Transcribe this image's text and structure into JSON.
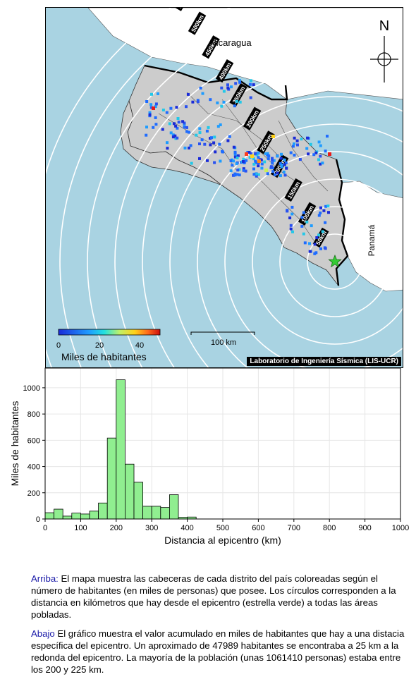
{
  "map": {
    "country_labels": {
      "north": "Nicaragua",
      "east": "Panamá"
    },
    "north_label": "N",
    "scale_label": "100 km",
    "colorbar": {
      "title": "Miles de habitantes",
      "ticks": [
        "0",
        "20",
        "40"
      ]
    },
    "ring_labels": [
      "50km",
      "100km",
      "150km",
      "200km",
      "250km",
      "300km",
      "350km",
      "400km",
      "450km",
      "500km",
      "550km"
    ],
    "credit": "Laboratorio de Ingeniería Sísmica (LIS-UCR)",
    "colors": {
      "sea": "#a9d3e2",
      "land": "#cccccc",
      "outside_land": "#ffffff",
      "epicenter": "#33cc33"
    }
  },
  "chart_data": {
    "type": "bar",
    "xlabel": "Distancia al epicentro (km)",
    "ylabel": "Miles de habitantes",
    "xlim": [
      0,
      1000
    ],
    "ylim": [
      0,
      1150
    ],
    "xticks": [
      0,
      100,
      200,
      300,
      400,
      500,
      600,
      700,
      800,
      900,
      1000
    ],
    "yticks": [
      0,
      200,
      400,
      600,
      800,
      1000
    ],
    "bin_width": 25,
    "bin_starts": [
      0,
      25,
      50,
      75,
      100,
      125,
      150,
      175,
      200,
      225,
      250,
      275,
      300,
      325,
      350,
      375,
      400
    ],
    "values": [
      48,
      75,
      22,
      45,
      38,
      60,
      122,
      617,
      1061,
      418,
      280,
      97,
      97,
      88,
      185,
      13,
      15
    ],
    "bar_color": "#90ee90"
  },
  "description": {
    "top_label": "Arriba:",
    "top_text": " El mapa muestra las cabeceras de cada distrito del país coloreadas según el número de habitantes (en miles de personas) que posee.  Los círculos corresponden a la distancia en kilómetros que hay desde el epicentro (estrella verde) a todas las áreas pobladas.",
    "bottom_label": "Abajo",
    "bottom_text": " El gráfico muestra el valor acumulado en miles de habitantes que hay a una distacia específica del epicentro.  Un aproximado de 47989 habitantes se encontraba a 25 km a la redonda del epicentro.  La mayoría de la población (unas 1061410 personas) estaba entre los 200 y 225 km."
  }
}
